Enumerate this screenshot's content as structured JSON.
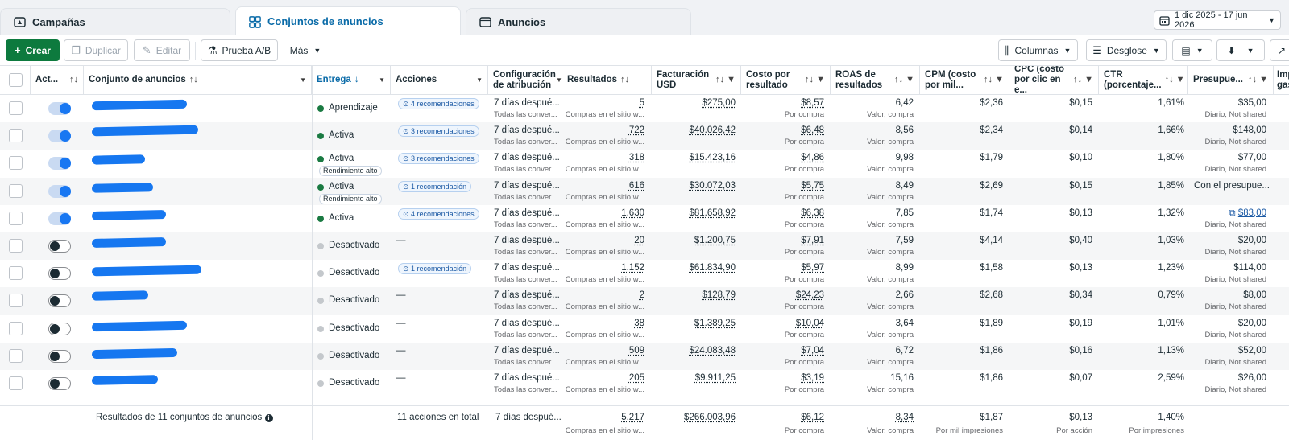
{
  "tabs": [
    {
      "label": "Campañas",
      "icon": "campaign-icon"
    },
    {
      "label": "Conjuntos de anuncios",
      "icon": "grid-icon"
    },
    {
      "label": "Anuncios",
      "icon": "ad-icon"
    }
  ],
  "date_range": "1 dic 2025 - 17 jun 2026",
  "toolbar": {
    "create": "Crear",
    "duplicate": "Duplicar",
    "edit": "Editar",
    "ab_test": "Prueba A/B",
    "more": "Más",
    "columns": "Columnas",
    "breakdown": "Desglose"
  },
  "headers": {
    "active": "Act...",
    "adset": "Conjunto de anuncios",
    "delivery": "Entrega",
    "actions": "Acciones",
    "attribution_1": "Configuración",
    "attribution_2": "de atribución",
    "results": "Resultados",
    "billing_1": "Facturación",
    "billing_2": "USD",
    "cpr_1": "Costo por",
    "cpr_2": "resultado",
    "roas_1": "ROAS de",
    "roas_2": "resultados",
    "cpm_1": "CPM (costo",
    "cpm_2": "por mil...",
    "cpc_1": "CPC (costo",
    "cpc_2": "por clic en e...",
    "ctr_1": "CTR",
    "ctr_2": "(porcentaje...",
    "budget": "Presupue...",
    "imp_1": "Imp",
    "imp_2": "gas"
  },
  "rows": [
    {
      "on": true,
      "status": "Aprendizaje",
      "status_color": "green",
      "perf": "",
      "rec": "4 recomendaciones",
      "attr": "7 días despué...",
      "attr_sub": "Todas las conver...",
      "results": "5",
      "results_sub": "Compras en el sitio w...",
      "billing": "$275,00",
      "cpr": "$8,57",
      "cpr_sub": "Por compra",
      "roas": "6,42",
      "roas_sub": "Valor, compra",
      "cpm": "$2,36",
      "cpc": "$0,15",
      "ctr": "1,61%",
      "budget": "$35,00",
      "budget_sub": "Diario, Not shared"
    },
    {
      "on": true,
      "status": "Activa",
      "status_color": "green",
      "perf": "",
      "rec": "3 recomendaciones",
      "attr": "7 días despué...",
      "attr_sub": "Todas las conver...",
      "results": "722",
      "results_sub": "Compras en el sitio w...",
      "billing": "$40.026,42",
      "cpr": "$6,48",
      "cpr_sub": "Por compra",
      "roas": "8,56",
      "roas_sub": "Valor, compra",
      "cpm": "$2,34",
      "cpc": "$0,14",
      "ctr": "1,66%",
      "budget": "$148,00",
      "budget_sub": "Diario, Not shared"
    },
    {
      "on": true,
      "status": "Activa",
      "status_color": "green",
      "perf": "Rendimiento alto",
      "rec": "3 recomendaciones",
      "attr": "7 días despué...",
      "attr_sub": "Todas las conver...",
      "results": "318",
      "results_sub": "Compras en el sitio w...",
      "billing": "$15.423,16",
      "cpr": "$4,86",
      "cpr_sub": "Por compra",
      "roas": "9,98",
      "roas_sub": "Valor, compra",
      "cpm": "$1,79",
      "cpc": "$0,10",
      "ctr": "1,80%",
      "budget": "$77,00",
      "budget_sub": "Diario, Not shared"
    },
    {
      "on": true,
      "status": "Activa",
      "status_color": "green",
      "perf": "Rendimiento alto",
      "rec": "1 recomendación",
      "attr": "7 días despué...",
      "attr_sub": "Todas las conver...",
      "results": "616",
      "results_sub": "Compras en el sitio w...",
      "billing": "$30.072,03",
      "cpr": "$5,75",
      "cpr_sub": "Por compra",
      "roas": "8,49",
      "roas_sub": "Valor, compra",
      "cpm": "$2,69",
      "cpc": "$0,15",
      "ctr": "1,85%",
      "budget": "Con el presupue...",
      "budget_sub": ""
    },
    {
      "on": true,
      "status": "Activa",
      "status_color": "green",
      "perf": "",
      "rec": "4 recomendaciones",
      "attr": "7 días despué...",
      "attr_sub": "Todas las conver...",
      "results": "1.630",
      "results_sub": "Compras en el sitio w...",
      "billing": "$81.658,92",
      "cpr": "$6,38",
      "cpr_sub": "Por compra",
      "roas": "7,85",
      "roas_sub": "Valor, compra",
      "cpm": "$1,74",
      "cpc": "$0,13",
      "ctr": "1,32%",
      "budget": "$83,00",
      "budget_sub": "Diario, Not shared",
      "budget_link": true
    },
    {
      "on": false,
      "status": "Desactivado",
      "status_color": "grey",
      "perf": "",
      "rec": "",
      "attr": "7 días despué...",
      "attr_sub": "Todas las conver...",
      "results": "20",
      "results_sub": "Compras en el sitio w...",
      "billing": "$1.200,75",
      "cpr": "$7,91",
      "cpr_sub": "Por compra",
      "roas": "7,59",
      "roas_sub": "Valor, compra",
      "cpm": "$4,14",
      "cpc": "$0,40",
      "ctr": "1,03%",
      "budget": "$20,00",
      "budget_sub": "Diario, Not shared"
    },
    {
      "on": false,
      "status": "Desactivado",
      "status_color": "grey",
      "perf": "",
      "rec": "1 recomendación",
      "attr": "7 días despué...",
      "attr_sub": "Todas las conver...",
      "results": "1.152",
      "results_sub": "Compras en el sitio w...",
      "billing": "$61.834,90",
      "cpr": "$5,97",
      "cpr_sub": "Por compra",
      "roas": "8,99",
      "roas_sub": "Valor, compra",
      "cpm": "$1,58",
      "cpc": "$0,13",
      "ctr": "1,23%",
      "budget": "$114,00",
      "budget_sub": "Diario, Not shared"
    },
    {
      "on": false,
      "status": "Desactivado",
      "status_color": "grey",
      "perf": "",
      "rec": "",
      "attr": "7 días despué...",
      "attr_sub": "Todas las conver...",
      "results": "2",
      "results_sub": "Compras en el sitio w...",
      "billing": "$128,79",
      "cpr": "$24,23",
      "cpr_sub": "Por compra",
      "roas": "2,66",
      "roas_sub": "Valor, compra",
      "cpm": "$2,68",
      "cpc": "$0,34",
      "ctr": "0,79%",
      "budget": "$8,00",
      "budget_sub": "Diario, Not shared"
    },
    {
      "on": false,
      "status": "Desactivado",
      "status_color": "grey",
      "perf": "",
      "rec": "",
      "attr": "7 días despué...",
      "attr_sub": "Todas las conver...",
      "results": "38",
      "results_sub": "Compras en el sitio w...",
      "billing": "$1.389,25",
      "cpr": "$10,04",
      "cpr_sub": "Por compra",
      "roas": "3,64",
      "roas_sub": "Valor, compra",
      "cpm": "$1,89",
      "cpc": "$0,19",
      "ctr": "1,01%",
      "budget": "$20,00",
      "budget_sub": "Diario, Not shared"
    },
    {
      "on": false,
      "status": "Desactivado",
      "status_color": "grey",
      "perf": "",
      "rec": "",
      "attr": "7 días despué...",
      "attr_sub": "Todas las conver...",
      "results": "509",
      "results_sub": "Compras en el sitio w...",
      "billing": "$24.083,48",
      "cpr": "$7,04",
      "cpr_sub": "Por compra",
      "roas": "6,72",
      "roas_sub": "Valor, compra",
      "cpm": "$1,86",
      "cpc": "$0,16",
      "ctr": "1,13%",
      "budget": "$52,00",
      "budget_sub": "Diario, Not shared"
    },
    {
      "on": false,
      "status": "Desactivado",
      "status_color": "grey",
      "perf": "",
      "rec": "",
      "attr": "7 días despué...",
      "attr_sub": "Todas las conver...",
      "results": "205",
      "results_sub": "Compras en el sitio w...",
      "billing": "$9.911,25",
      "cpr": "$3,19",
      "cpr_sub": "Por compra",
      "roas": "15,16",
      "roas_sub": "Valor, compra",
      "cpm": "$1,86",
      "cpc": "$0,07",
      "ctr": "2,59%",
      "budget": "$26,00",
      "budget_sub": "Diario, Not shared"
    }
  ],
  "dash": "—",
  "footer": {
    "summary": "Resultados de 11 conjuntos de anuncios",
    "actions": "11 acciones en total",
    "attr": "7 días despué...",
    "results": "5.217",
    "results_sub": "Compras en el sitio w...",
    "billing": "$266.003,96",
    "cpr": "$6,12",
    "cpr_sub": "Por compra",
    "roas": "8,34",
    "roas_sub": "Valor, compra",
    "cpm": "$1,87",
    "cpm_sub": "Por mil impresiones",
    "cpc": "$0,13",
    "cpc_sub": "Por acción",
    "ctr": "1,40%",
    "ctr_sub": "Por impresiones"
  },
  "colors": {
    "accent": "#0a6ba8",
    "create": "#0d7a3e",
    "toggle_on": "#1877f2",
    "active_dot": "#1a7a42",
    "redaction": "#1677f0"
  }
}
